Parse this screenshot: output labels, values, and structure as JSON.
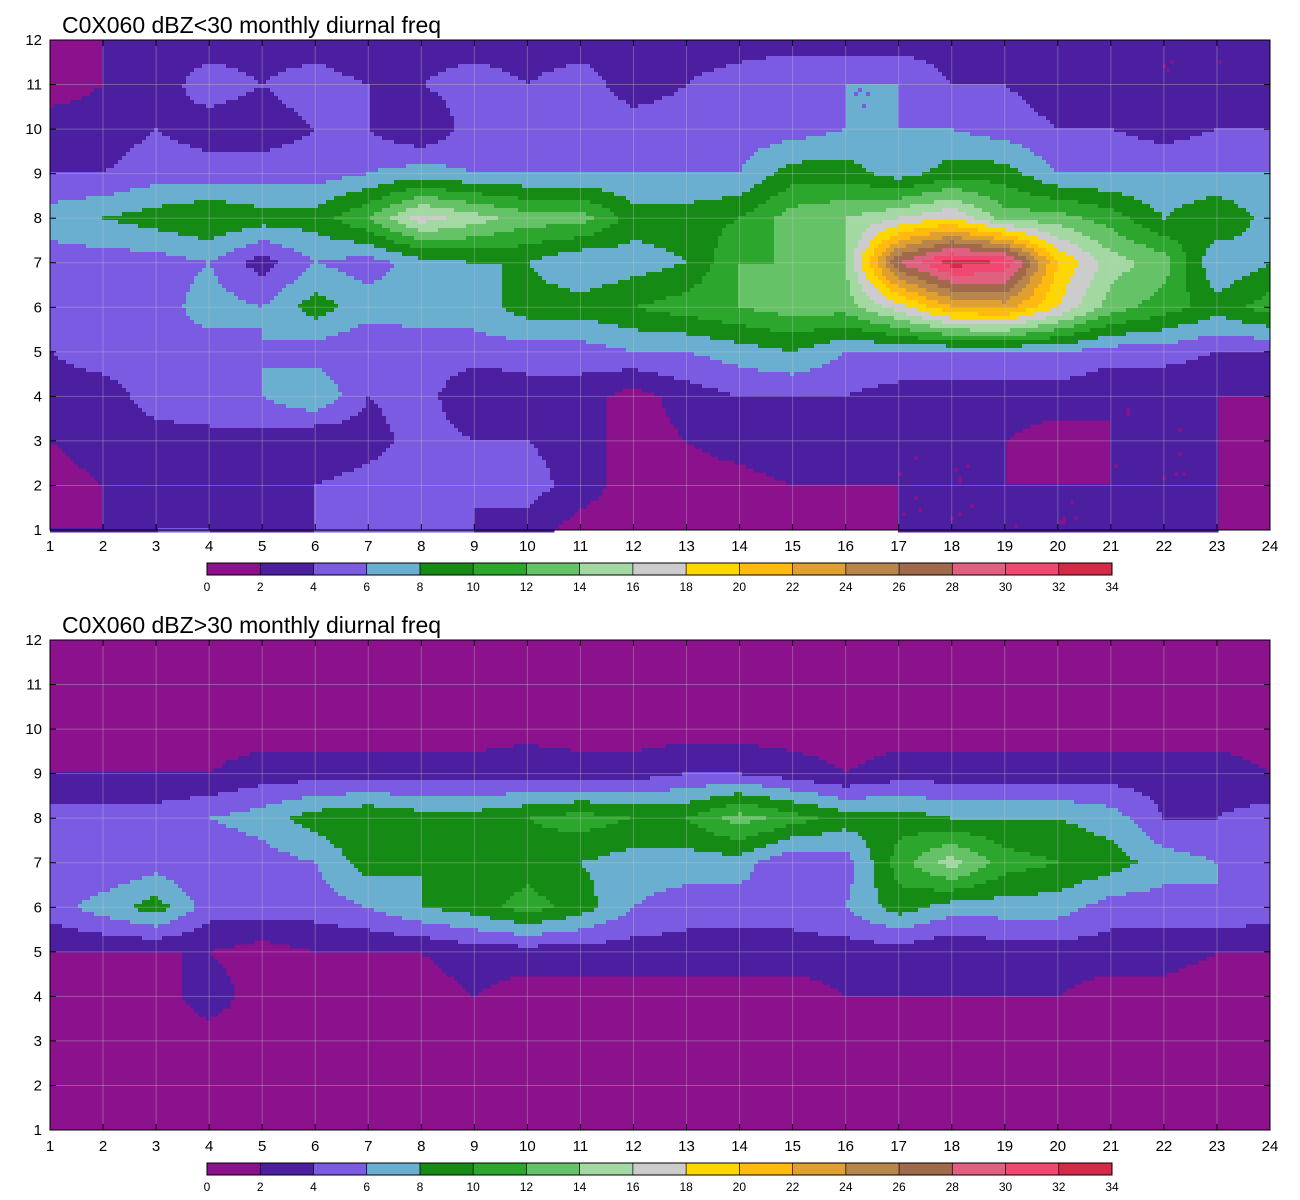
{
  "chart_data": [
    {
      "type": "heatmap",
      "title": "C0X060 dBZ<30 monthly diurnal freq",
      "x": [
        1,
        2,
        3,
        4,
        5,
        6,
        7,
        8,
        9,
        10,
        11,
        12,
        13,
        14,
        15,
        16,
        17,
        18,
        19,
        20,
        21,
        22,
        23,
        24
      ],
      "y": [
        1,
        2,
        3,
        4,
        5,
        6,
        7,
        8,
        9,
        10,
        11,
        12
      ],
      "xlim": [
        1,
        24
      ],
      "ylim": [
        1,
        12
      ],
      "xticks": [
        "1",
        "2",
        "3",
        "4",
        "5",
        "6",
        "7",
        "8",
        "9",
        "10",
        "11",
        "12",
        "13",
        "14",
        "15",
        "16",
        "17",
        "18",
        "19",
        "20",
        "21",
        "22",
        "23",
        "24"
      ],
      "yticks": [
        "1",
        "2",
        "3",
        "4",
        "5",
        "6",
        "7",
        "8",
        "9",
        "10",
        "11",
        "12"
      ],
      "grid": true,
      "colorbar": {
        "levels": [
          0,
          2,
          4,
          6,
          8,
          10,
          12,
          14,
          16,
          18,
          20,
          22,
          24,
          26,
          28,
          30,
          32,
          34
        ],
        "labels": [
          "0",
          "2",
          "4",
          "6",
          "8",
          "10",
          "12",
          "14",
          "16",
          "18",
          "20",
          "22",
          "24",
          "26",
          "28",
          "30",
          "32",
          "34"
        ],
        "colors": [
          "#8b118d",
          "#4b1fa0",
          "#7b5be2",
          "#6aaed0",
          "#158b15",
          "#2ca62c",
          "#66c266",
          "#a3d8a3",
          "#cccccc",
          "#ffd700",
          "#ffb90f",
          "#e0a030",
          "#b8864b",
          "#a0694b",
          "#e06080",
          "#f04870",
          "#d42a48"
        ]
      },
      "z": [
        [
          2,
          2,
          4,
          4,
          3,
          4,
          5,
          5,
          4,
          3,
          1,
          1,
          0.5,
          1,
          1,
          0.5,
          2,
          2,
          2,
          2,
          2,
          3,
          2,
          1.5
        ],
        [
          1,
          2,
          3,
          3,
          2,
          4,
          5,
          5,
          4,
          5,
          3,
          1,
          1,
          1,
          2,
          2,
          2,
          2,
          2,
          2,
          2,
          2,
          2,
          1
        ],
        [
          2,
          3,
          3,
          3,
          3,
          2,
          3,
          5,
          4,
          4,
          3,
          1,
          2,
          3,
          4,
          3,
          2,
          2,
          2,
          1,
          2,
          2,
          2,
          1
        ],
        [
          3,
          3,
          5,
          6,
          6,
          8,
          4,
          5,
          2,
          3,
          3,
          1,
          3,
          4,
          4,
          4,
          3,
          3,
          3,
          3,
          2,
          2,
          2,
          2
        ],
        [
          4,
          5,
          5,
          5,
          6,
          5,
          4,
          5,
          5,
          5,
          5,
          6,
          6,
          7,
          8,
          6,
          6,
          6,
          6,
          6,
          5,
          5,
          4,
          4
        ],
        [
          6,
          6,
          5,
          7,
          6,
          9,
          7,
          7,
          7,
          9,
          9,
          10,
          11,
          12,
          13,
          13,
          17,
          22,
          23,
          18,
          13,
          11,
          9,
          11
        ],
        [
          5,
          5,
          5,
          6,
          3,
          6,
          5,
          7,
          8,
          8,
          6,
          7,
          8,
          12,
          12,
          14,
          28,
          33,
          32,
          20,
          15,
          13,
          6,
          8
        ],
        [
          7,
          8,
          9,
          10,
          9,
          9,
          12,
          17,
          15,
          13,
          13,
          9,
          9,
          10,
          13,
          14,
          16,
          18,
          13,
          13,
          11,
          8,
          10,
          7
        ],
        [
          4,
          4,
          5,
          5,
          5,
          5,
          6,
          7,
          6,
          6,
          6,
          6,
          6,
          6,
          9,
          9,
          7,
          9,
          9,
          6,
          6,
          6,
          6,
          6
        ],
        [
          3,
          3,
          4,
          3,
          3,
          4,
          4,
          2,
          5,
          4,
          5,
          5,
          5,
          5,
          5,
          6,
          6,
          6,
          5,
          4,
          4,
          3,
          4,
          4
        ],
        [
          1,
          2,
          3,
          5,
          4,
          5,
          4,
          4,
          5,
          4,
          5,
          3,
          4,
          5,
          6,
          6,
          6,
          4,
          4,
          3,
          3,
          2,
          2,
          2
        ],
        [
          1,
          2,
          3,
          3,
          3,
          3,
          2,
          3,
          3,
          3,
          3,
          3,
          3,
          3,
          3,
          3,
          3,
          3,
          3,
          2,
          2,
          2,
          2,
          2
        ]
      ]
    },
    {
      "type": "heatmap",
      "title": "C0X060 dBZ>30 monthly diurnal freq",
      "x": [
        1,
        2,
        3,
        4,
        5,
        6,
        7,
        8,
        9,
        10,
        11,
        12,
        13,
        14,
        15,
        16,
        17,
        18,
        19,
        20,
        21,
        22,
        23,
        24
      ],
      "y": [
        1,
        2,
        3,
        4,
        5,
        6,
        7,
        8,
        9,
        10,
        11,
        12
      ],
      "xlim": [
        1,
        24
      ],
      "ylim": [
        1,
        12
      ],
      "xticks": [
        "1",
        "2",
        "3",
        "4",
        "5",
        "6",
        "7",
        "8",
        "9",
        "10",
        "11",
        "12",
        "13",
        "14",
        "15",
        "16",
        "17",
        "18",
        "19",
        "20",
        "21",
        "22",
        "23",
        "24"
      ],
      "yticks": [
        "1",
        "2",
        "3",
        "4",
        "5",
        "6",
        "7",
        "8",
        "9",
        "10",
        "11",
        "12"
      ],
      "grid": true,
      "colorbar": {
        "levels": [
          0,
          2,
          4,
          6,
          8,
          10,
          12,
          14,
          16,
          18,
          20,
          22,
          24,
          26,
          28,
          30,
          32,
          34
        ],
        "labels": [
          "0",
          "2",
          "4",
          "6",
          "8",
          "10",
          "12",
          "14",
          "16",
          "18",
          "20",
          "22",
          "24",
          "26",
          "28",
          "30",
          "32",
          "34"
        ],
        "colors": [
          "#8b118d",
          "#4b1fa0",
          "#7b5be2",
          "#6aaed0",
          "#158b15",
          "#2ca62c",
          "#66c266",
          "#a3d8a3",
          "#cccccc",
          "#ffd700",
          "#ffb90f",
          "#e0a030",
          "#b8864b",
          "#a0694b",
          "#e06080",
          "#f04870",
          "#d42a48"
        ]
      },
      "z": [
        [
          0.5,
          0.5,
          0.5,
          0.5,
          0.5,
          0.5,
          0.5,
          0.5,
          0.5,
          0.5,
          0.5,
          0.5,
          0.5,
          0.5,
          0.5,
          0.5,
          0.5,
          0.5,
          0.5,
          0.5,
          0.5,
          0.5,
          0.5,
          0.5
        ],
        [
          0.5,
          0.5,
          0.5,
          0.5,
          0.5,
          0.5,
          0.5,
          0.5,
          0.5,
          0.5,
          0.5,
          0.5,
          0.5,
          0.5,
          0.5,
          0.5,
          0.5,
          0.5,
          0.5,
          0.5,
          0.5,
          0.5,
          0.5,
          0.5
        ],
        [
          1,
          1,
          1,
          1,
          1,
          1,
          1,
          1,
          1,
          1,
          1,
          1,
          1,
          1,
          1,
          1,
          2,
          1,
          1,
          1,
          1,
          1,
          0.5,
          0.5
        ],
        [
          1,
          2,
          1,
          3,
          1,
          1,
          1,
          1,
          2,
          1,
          1,
          1,
          1,
          1,
          1,
          2,
          2,
          2,
          2,
          2,
          1,
          1,
          0.5,
          0.5
        ],
        [
          2,
          2,
          2,
          2,
          1,
          2,
          2,
          2,
          3,
          3,
          3,
          3,
          3,
          3,
          3,
          3,
          3,
          2,
          3,
          3,
          3,
          3,
          2,
          2
        ],
        [
          5,
          7,
          9,
          5,
          5,
          5,
          6,
          8,
          9,
          11,
          9,
          6,
          5,
          5,
          5,
          6,
          9,
          7,
          7,
          7,
          5,
          5,
          6,
          5
        ],
        [
          4,
          4,
          5,
          4,
          5,
          6,
          9,
          8,
          8,
          9,
          8,
          7,
          7,
          7,
          4,
          5,
          11,
          15,
          11,
          10,
          9,
          7,
          6,
          4
        ],
        [
          5,
          5,
          5,
          6,
          7,
          9,
          10,
          9,
          9,
          10,
          11,
          10,
          10,
          13,
          11,
          9,
          9,
          8,
          8,
          8,
          7,
          4,
          4,
          5
        ],
        [
          2,
          2,
          2,
          2,
          3,
          3,
          3,
          3,
          3,
          3,
          3,
          3,
          4,
          4,
          3,
          2,
          3,
          3,
          3,
          3,
          3,
          3,
          3,
          2
        ],
        [
          1,
          1,
          1,
          1,
          1,
          1,
          1,
          1,
          1,
          1.5,
          1,
          1,
          1,
          1,
          1,
          1,
          1,
          1,
          1,
          1,
          1,
          1,
          1,
          1
        ],
        [
          0.5,
          0.5,
          0.5,
          0.5,
          0.5,
          0.5,
          0.5,
          0.5,
          0.5,
          0.5,
          0.5,
          0.5,
          0.5,
          0.5,
          0.5,
          0.5,
          0.5,
          0.5,
          0.5,
          0.5,
          0.5,
          0.5,
          0.5,
          0.5
        ],
        [
          0.5,
          0.5,
          0.5,
          0.5,
          0.5,
          0.5,
          0.5,
          0.5,
          0.5,
          0.5,
          0.5,
          0.5,
          0.5,
          0.5,
          0.5,
          0.5,
          0.5,
          0.5,
          0.5,
          0.5,
          0.5,
          0.5,
          0.5,
          0.5
        ]
      ]
    }
  ]
}
